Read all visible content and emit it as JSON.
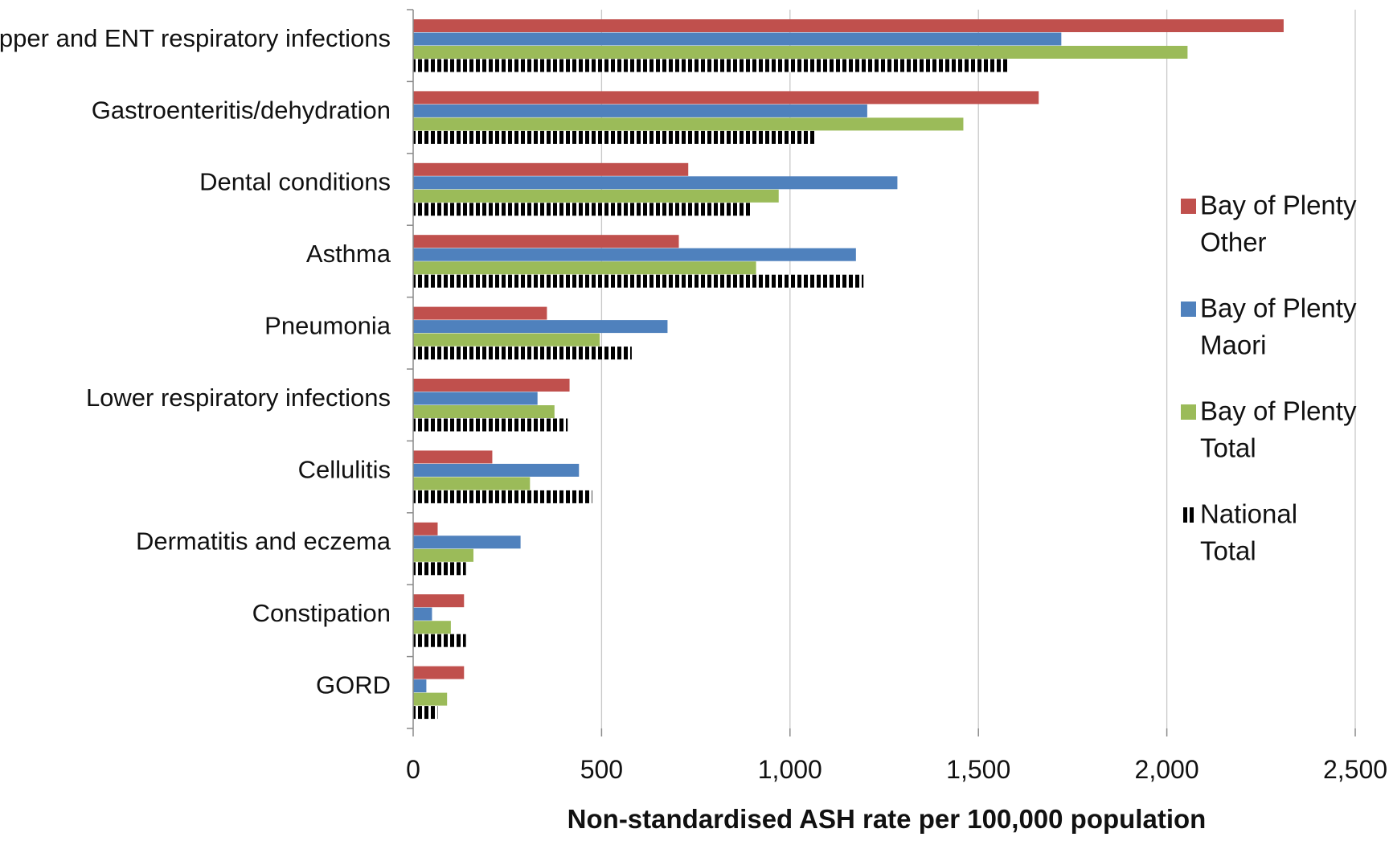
{
  "chart_data": {
    "type": "bar",
    "orientation": "horizontal",
    "categories": [
      "Upper and ENT respiratory infections",
      "Gastroenteritis/dehydration",
      "Dental conditions",
      "Asthma",
      "Pneumonia",
      "Lower respiratory infections",
      "Cellulitis",
      "Dermatitis and eczema",
      "Constipation",
      "GORD"
    ],
    "series": [
      {
        "name": "Bay of Plenty Other",
        "name_lines": [
          "Bay of Plenty",
          "Other"
        ],
        "color": "#C0504D",
        "pattern": "solid",
        "values": [
          2310,
          1660,
          730,
          705,
          355,
          415,
          210,
          65,
          135,
          135
        ]
      },
      {
        "name": "Bay of Plenty Maori",
        "name_lines": [
          "Bay of Plenty",
          "Maori"
        ],
        "color": "#4F81BD",
        "pattern": "solid",
        "values": [
          1720,
          1205,
          1285,
          1175,
          675,
          330,
          440,
          285,
          50,
          35
        ]
      },
      {
        "name": "Bay of Plenty Total",
        "name_lines": [
          "Bay of Plenty",
          "Total"
        ],
        "color": "#9BBB59",
        "pattern": "solid",
        "values": [
          2055,
          1460,
          970,
          910,
          495,
          375,
          310,
          160,
          100,
          90
        ]
      },
      {
        "name": "National Total",
        "name_lines": [
          "National",
          "Total"
        ],
        "color": "#000000",
        "pattern": "vertical-stripes",
        "values": [
          1580,
          1070,
          895,
          1195,
          580,
          410,
          475,
          140,
          140,
          65
        ]
      }
    ],
    "xlabel": "Non-standardised ASH rate per 100,000 population",
    "ylabel": "",
    "xlim": [
      0,
      2500
    ],
    "x_ticks": [
      0,
      500,
      1000,
      1500,
      2000,
      2500
    ],
    "x_tick_labels": [
      "0",
      "500",
      "1,000",
      "1,500",
      "2,000",
      "2,500"
    ],
    "grid": "vertical",
    "legend_position": "right"
  }
}
